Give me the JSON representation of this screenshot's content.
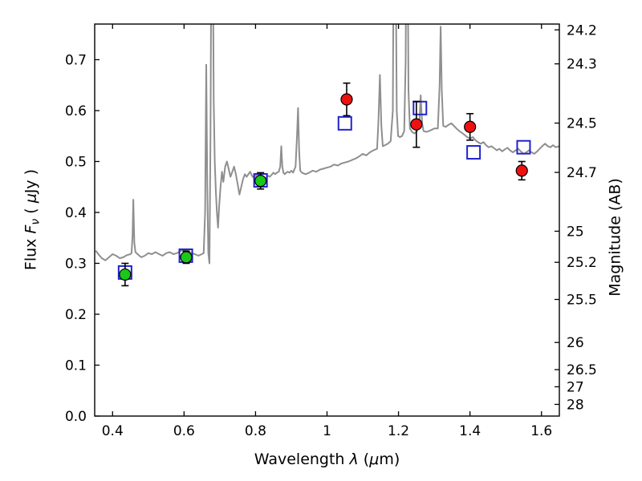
{
  "figure": {
    "background": "#ffffff",
    "xlabel_parts": {
      "p1": "Wavelength ",
      "p2": "λ",
      "p3": " (",
      "p4": "μ",
      "p5": "m)"
    },
    "ylabel_left_parts": {
      "p1": "Flux ",
      "p2": "F",
      "p3": "ν",
      "p4": " ( ",
      "p5": "μ",
      "p6": "Jy )"
    },
    "ylabel_right": "Magnitude (AB)"
  },
  "chart_data": {
    "type": "line",
    "title": "",
    "xlabel": "Wavelength λ (μm)",
    "ylabel_left": "Flux Fν ( μJy )",
    "ylabel_right": "Magnitude (AB)",
    "xlim": [
      0.35,
      1.65
    ],
    "ylim": [
      0.0,
      0.77
    ],
    "grid": false,
    "legend": "none",
    "axis_color": "#000000",
    "x_ticks": {
      "values": [
        0.4,
        0.6,
        0.8,
        1.0,
        1.2,
        1.4,
        1.6
      ],
      "labels": [
        "0.4",
        "0.6",
        "0.8",
        "1",
        "1.2",
        "1.4",
        "1.6"
      ]
    },
    "y_ticks_left": {
      "values": [
        0.0,
        0.1,
        0.2,
        0.3,
        0.4,
        0.5,
        0.6,
        0.7
      ],
      "labels": [
        "0.0",
        "0.1",
        "0.2",
        "0.3",
        "0.4",
        "0.5",
        "0.6",
        "0.7"
      ]
    },
    "y_ticks_right_mag": {
      "flux_zeropoint_ab": 23.9,
      "values": [
        24.2,
        24.3,
        24.5,
        24.7,
        25,
        25.2,
        25.5,
        26,
        26.5,
        27,
        28
      ],
      "labels": [
        "24.2",
        "24.3",
        "24.5",
        "24.7",
        "25",
        "25.2",
        "25.5",
        "26",
        "26.5",
        "27",
        "28"
      ]
    },
    "series": [
      {
        "name": "model_spectrum",
        "label": "best-fit model spectrum",
        "type": "line",
        "color": "#8f8f8f",
        "linewidth": 2,
        "points": [
          [
            0.353,
            0.325
          ],
          [
            0.36,
            0.318
          ],
          [
            0.37,
            0.31
          ],
          [
            0.38,
            0.306
          ],
          [
            0.39,
            0.312
          ],
          [
            0.4,
            0.318
          ],
          [
            0.41,
            0.315
          ],
          [
            0.42,
            0.31
          ],
          [
            0.43,
            0.312
          ],
          [
            0.44,
            0.316
          ],
          [
            0.45,
            0.318
          ],
          [
            0.453,
            0.32
          ],
          [
            0.456,
            0.355
          ],
          [
            0.458,
            0.425
          ],
          [
            0.461,
            0.34
          ],
          [
            0.464,
            0.322
          ],
          [
            0.47,
            0.318
          ],
          [
            0.48,
            0.312
          ],
          [
            0.49,
            0.315
          ],
          [
            0.5,
            0.32
          ],
          [
            0.51,
            0.318
          ],
          [
            0.52,
            0.322
          ],
          [
            0.53,
            0.318
          ],
          [
            0.54,
            0.315
          ],
          [
            0.55,
            0.32
          ],
          [
            0.56,
            0.322
          ],
          [
            0.57,
            0.318
          ],
          [
            0.58,
            0.32
          ],
          [
            0.59,
            0.324
          ],
          [
            0.6,
            0.326
          ],
          [
            0.61,
            0.324
          ],
          [
            0.62,
            0.32
          ],
          [
            0.63,
            0.318
          ],
          [
            0.64,
            0.315
          ],
          [
            0.65,
            0.318
          ],
          [
            0.655,
            0.32
          ],
          [
            0.659,
            0.4
          ],
          [
            0.662,
            0.69
          ],
          [
            0.665,
            0.45
          ],
          [
            0.668,
            0.32
          ],
          [
            0.671,
            0.3
          ],
          [
            0.674,
            0.55
          ],
          [
            0.677,
            1.0
          ],
          [
            0.68,
            1.0
          ],
          [
            0.683,
            0.62
          ],
          [
            0.686,
            0.5
          ],
          [
            0.689,
            0.44
          ],
          [
            0.692,
            0.4
          ],
          [
            0.695,
            0.37
          ],
          [
            0.698,
            0.41
          ],
          [
            0.702,
            0.45
          ],
          [
            0.706,
            0.48
          ],
          [
            0.71,
            0.46
          ],
          [
            0.715,
            0.49
          ],
          [
            0.72,
            0.5
          ],
          [
            0.725,
            0.485
          ],
          [
            0.73,
            0.47
          ],
          [
            0.735,
            0.48
          ],
          [
            0.74,
            0.49
          ],
          [
            0.745,
            0.475
          ],
          [
            0.75,
            0.455
          ],
          [
            0.755,
            0.435
          ],
          [
            0.76,
            0.45
          ],
          [
            0.765,
            0.465
          ],
          [
            0.77,
            0.475
          ],
          [
            0.775,
            0.47
          ],
          [
            0.78,
            0.475
          ],
          [
            0.785,
            0.48
          ],
          [
            0.79,
            0.472
          ],
          [
            0.795,
            0.468
          ],
          [
            0.8,
            0.472
          ],
          [
            0.805,
            0.475
          ],
          [
            0.81,
            0.472
          ],
          [
            0.815,
            0.47
          ],
          [
            0.82,
            0.468
          ],
          [
            0.825,
            0.465
          ],
          [
            0.83,
            0.468
          ],
          [
            0.835,
            0.472
          ],
          [
            0.84,
            0.47
          ],
          [
            0.845,
            0.474
          ],
          [
            0.85,
            0.478
          ],
          [
            0.855,
            0.475
          ],
          [
            0.86,
            0.478
          ],
          [
            0.865,
            0.48
          ],
          [
            0.869,
            0.49
          ],
          [
            0.872,
            0.53
          ],
          [
            0.875,
            0.49
          ],
          [
            0.878,
            0.478
          ],
          [
            0.882,
            0.475
          ],
          [
            0.886,
            0.478
          ],
          [
            0.89,
            0.48
          ],
          [
            0.895,
            0.478
          ],
          [
            0.9,
            0.482
          ],
          [
            0.905,
            0.478
          ],
          [
            0.912,
            0.49
          ],
          [
            0.916,
            0.55
          ],
          [
            0.919,
            0.605
          ],
          [
            0.922,
            0.52
          ],
          [
            0.925,
            0.482
          ],
          [
            0.93,
            0.478
          ],
          [
            0.94,
            0.475
          ],
          [
            0.95,
            0.478
          ],
          [
            0.96,
            0.482
          ],
          [
            0.97,
            0.48
          ],
          [
            0.98,
            0.484
          ],
          [
            0.99,
            0.486
          ],
          [
            1.0,
            0.488
          ],
          [
            1.01,
            0.49
          ],
          [
            1.02,
            0.494
          ],
          [
            1.03,
            0.492
          ],
          [
            1.04,
            0.496
          ],
          [
            1.05,
            0.498
          ],
          [
            1.06,
            0.5
          ],
          [
            1.07,
            0.503
          ],
          [
            1.08,
            0.506
          ],
          [
            1.09,
            0.51
          ],
          [
            1.1,
            0.515
          ],
          [
            1.11,
            0.512
          ],
          [
            1.12,
            0.518
          ],
          [
            1.13,
            0.522
          ],
          [
            1.14,
            0.525
          ],
          [
            1.144,
            0.58
          ],
          [
            1.148,
            0.67
          ],
          [
            1.152,
            0.57
          ],
          [
            1.156,
            0.53
          ],
          [
            1.162,
            0.532
          ],
          [
            1.17,
            0.535
          ],
          [
            1.178,
            0.54
          ],
          [
            1.184,
            0.6
          ],
          [
            1.187,
            1.0
          ],
          [
            1.191,
            1.0
          ],
          [
            1.195,
            0.6
          ],
          [
            1.199,
            0.55
          ],
          [
            1.204,
            0.548
          ],
          [
            1.21,
            0.55
          ],
          [
            1.216,
            0.56
          ],
          [
            1.22,
            0.7
          ],
          [
            1.222,
            1.0
          ],
          [
            1.225,
            1.0
          ],
          [
            1.228,
            0.64
          ],
          [
            1.232,
            0.565
          ],
          [
            1.238,
            0.558
          ],
          [
            1.245,
            0.555
          ],
          [
            1.252,
            0.56
          ],
          [
            1.258,
            0.57
          ],
          [
            1.262,
            0.63
          ],
          [
            1.266,
            0.575
          ],
          [
            1.27,
            0.56
          ],
          [
            1.278,
            0.558
          ],
          [
            1.285,
            0.56
          ],
          [
            1.292,
            0.562
          ],
          [
            1.3,
            0.565
          ],
          [
            1.31,
            0.565
          ],
          [
            1.315,
            0.65
          ],
          [
            1.318,
            0.765
          ],
          [
            1.321,
            0.64
          ],
          [
            1.325,
            0.57
          ],
          [
            1.332,
            0.568
          ],
          [
            1.34,
            0.572
          ],
          [
            1.348,
            0.575
          ],
          [
            1.355,
            0.57
          ],
          [
            1.362,
            0.565
          ],
          [
            1.37,
            0.56
          ],
          [
            1.378,
            0.556
          ],
          [
            1.385,
            0.552
          ],
          [
            1.392,
            0.548
          ],
          [
            1.4,
            0.545
          ],
          [
            1.408,
            0.548
          ],
          [
            1.415,
            0.542
          ],
          [
            1.422,
            0.538
          ],
          [
            1.43,
            0.535
          ],
          [
            1.438,
            0.538
          ],
          [
            1.445,
            0.532
          ],
          [
            1.452,
            0.528
          ],
          [
            1.46,
            0.53
          ],
          [
            1.468,
            0.526
          ],
          [
            1.475,
            0.522
          ],
          [
            1.482,
            0.525
          ],
          [
            1.49,
            0.52
          ],
          [
            1.498,
            0.524
          ],
          [
            1.505,
            0.527
          ],
          [
            1.512,
            0.522
          ],
          [
            1.52,
            0.518
          ],
          [
            1.528,
            0.522
          ],
          [
            1.535,
            0.525
          ],
          [
            1.542,
            0.52
          ],
          [
            1.55,
            0.515
          ],
          [
            1.558,
            0.518
          ],
          [
            1.565,
            0.522
          ],
          [
            1.572,
            0.518
          ],
          [
            1.58,
            0.515
          ],
          [
            1.588,
            0.52
          ],
          [
            1.595,
            0.525
          ],
          [
            1.602,
            0.53
          ],
          [
            1.61,
            0.535
          ],
          [
            1.618,
            0.53
          ],
          [
            1.625,
            0.528
          ],
          [
            1.632,
            0.532
          ],
          [
            1.64,
            0.528
          ],
          [
            1.649,
            0.53
          ]
        ]
      },
      {
        "name": "model_photometry",
        "label": "model photometry (open squares)",
        "type": "scatter",
        "marker": "open-square",
        "color": "#2222cc",
        "marker_size": 16,
        "points": [
          {
            "x": 0.435,
            "y": 0.282
          },
          {
            "x": 0.605,
            "y": 0.315
          },
          {
            "x": 0.814,
            "y": 0.463
          },
          {
            "x": 1.05,
            "y": 0.575
          },
          {
            "x": 1.26,
            "y": 0.605
          },
          {
            "x": 1.41,
            "y": 0.518
          },
          {
            "x": 1.55,
            "y": 0.528
          }
        ]
      },
      {
        "name": "observed_optical",
        "label": "observed photometry, optical (green circles)",
        "type": "scatter",
        "marker": "circle",
        "color": "#19c819",
        "edge_color": "#000000",
        "errorbar_color": "#000000",
        "marker_size": 14,
        "points": [
          {
            "x": 0.435,
            "y": 0.278,
            "yerr": 0.022
          },
          {
            "x": 0.606,
            "y": 0.312,
            "yerr": 0.012
          },
          {
            "x": 0.814,
            "y": 0.462,
            "yerr": 0.016
          }
        ]
      },
      {
        "name": "observed_infrared",
        "label": "observed photometry, infrared (red circles)",
        "type": "scatter",
        "marker": "circle",
        "color": "#ee1111",
        "edge_color": "#000000",
        "errorbar_color": "#000000",
        "marker_size": 14,
        "points": [
          {
            "x": 1.055,
            "y": 0.622,
            "yerr": 0.032
          },
          {
            "x": 1.25,
            "y": 0.573,
            "yerr": 0.045
          },
          {
            "x": 1.4,
            "y": 0.568,
            "yerr": 0.026
          },
          {
            "x": 1.545,
            "y": 0.482,
            "yerr": 0.018
          }
        ]
      }
    ]
  }
}
